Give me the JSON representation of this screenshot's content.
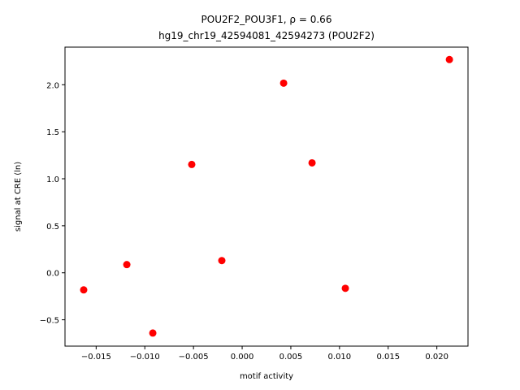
{
  "chart_data": {
    "type": "scatter",
    "title": "POU2F2_POU3F1, ρ = 0.66",
    "subtitle": "hg19_chr19_42594081_42594273 (POU2F2)",
    "x_label": "motif activity",
    "y_label": "signal at CRE (ln)",
    "color": "#ff0000",
    "x": [
      -0.01628,
      -0.01185,
      -0.00918,
      -0.00518,
      -0.00209,
      0.00426,
      0.00718,
      0.0106,
      0.02129
    ],
    "values": [
      -0.182,
      0.087,
      -0.641,
      1.152,
      0.13,
      2.017,
      1.169,
      -0.165,
      2.268
    ],
    "xlim": [
      -0.0182,
      0.0232
    ],
    "ylim": [
      -0.78,
      2.4
    ],
    "xticks": [
      {
        "value": -0.015,
        "label": "−0.015"
      },
      {
        "value": -0.01,
        "label": "−0.010"
      },
      {
        "value": -0.005,
        "label": "−0.005"
      },
      {
        "value": 0,
        "label": "0.000"
      },
      {
        "value": 0.005,
        "label": "0.005"
      },
      {
        "value": 0.01,
        "label": "0.010"
      },
      {
        "value": 0.015,
        "label": "0.015"
      },
      {
        "value": 0.02,
        "label": "0.020"
      }
    ],
    "yticks": [
      {
        "value": -0.5,
        "label": "−0.5"
      },
      {
        "value": 0,
        "label": "0.0"
      },
      {
        "value": 0.5,
        "label": "0.5"
      },
      {
        "value": 1,
        "label": "1.0"
      },
      {
        "value": 1.5,
        "label": "1.5"
      },
      {
        "value": 2,
        "label": "2.0"
      }
    ]
  }
}
